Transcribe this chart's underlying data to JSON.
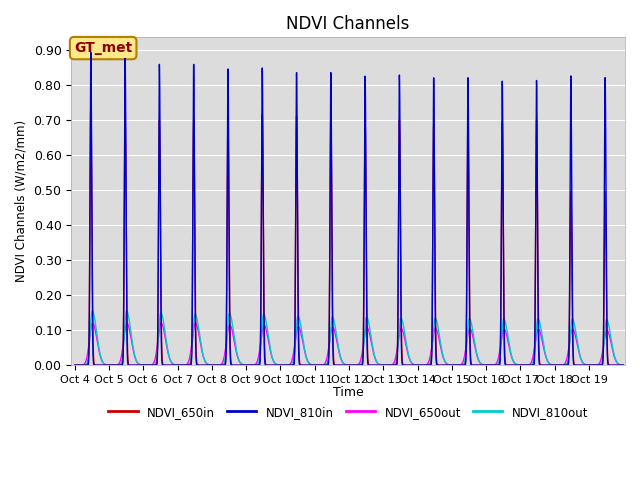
{
  "title": "NDVI Channels",
  "ylabel": "NDVI Channels (W/m2/mm)",
  "xlabel": "Time",
  "ylim": [
    0.0,
    0.935
  ],
  "yticks": [
    0.0,
    0.1,
    0.2,
    0.3,
    0.4,
    0.5,
    0.6,
    0.7,
    0.8,
    0.9
  ],
  "xtick_labels": [
    "Oct 4",
    "Oct 5",
    "Oct 6",
    "Oct 7",
    "Oct 8",
    "Oct 9",
    "Oct 10",
    "Oct 11",
    "Oct 12",
    "Oct 13",
    "Oct 14",
    "Oct 15",
    "Oct 16",
    "Oct 17",
    "Oct 18",
    "Oct 19"
  ],
  "bg_color": "#dcdcdc",
  "fig_color": "#ffffff",
  "legend_label": "GT_met",
  "legend_box_color": "#ffe88a",
  "legend_box_edge": "#b08000",
  "colors": {
    "NDVI_650in": "#cc0000",
    "NDVI_810in": "#0000cc",
    "NDVI_650out": "#ff00ff",
    "NDVI_810out": "#00cccc"
  },
  "peak_810in": [
    0.892,
    0.875,
    0.858,
    0.858,
    0.845,
    0.848,
    0.835,
    0.835,
    0.825,
    0.828,
    0.82,
    0.82,
    0.81,
    0.812,
    0.825,
    0.82
  ],
  "peak_650in": [
    0.745,
    0.72,
    0.698,
    0.7,
    0.688,
    0.715,
    0.71,
    0.705,
    0.7,
    0.7,
    0.688,
    0.7,
    0.695,
    0.7,
    0.495,
    0.495
  ],
  "peak_650out": [
    0.12,
    0.12,
    0.12,
    0.12,
    0.115,
    0.115,
    0.11,
    0.108,
    0.108,
    0.105,
    0.105,
    0.105,
    0.103,
    0.103,
    0.103,
    0.1
  ],
  "peak_810out": [
    0.155,
    0.155,
    0.15,
    0.145,
    0.148,
    0.145,
    0.14,
    0.138,
    0.138,
    0.135,
    0.135,
    0.133,
    0.132,
    0.133,
    0.132,
    0.13
  ],
  "n_days": 16,
  "points_per_day": 500,
  "figsize": [
    6.4,
    4.8
  ],
  "dpi": 100
}
